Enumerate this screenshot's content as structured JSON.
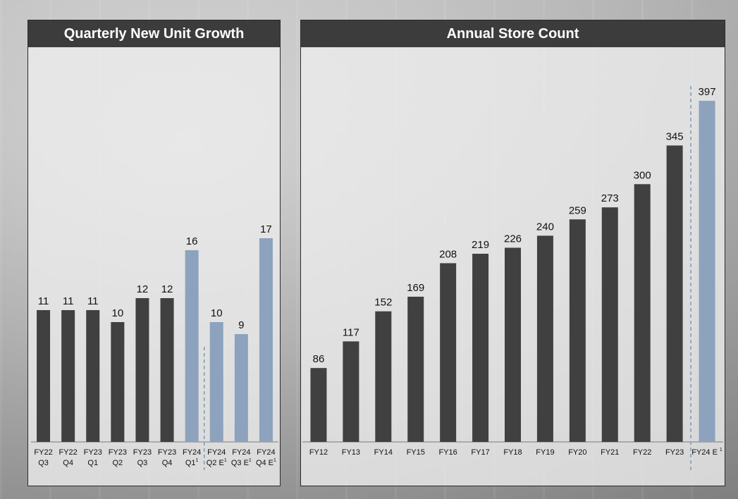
{
  "chart_data": [
    {
      "type": "bar",
      "title": "Quarterly New Unit Growth",
      "categories": [
        {
          "line1": "FY22",
          "line2": "Q3",
          "sup": ""
        },
        {
          "line1": "FY22",
          "line2": "Q4",
          "sup": ""
        },
        {
          "line1": "FY23",
          "line2": "Q1",
          "sup": ""
        },
        {
          "line1": "FY23",
          "line2": "Q2",
          "sup": ""
        },
        {
          "line1": "FY23",
          "line2": "Q3",
          "sup": ""
        },
        {
          "line1": "FY23",
          "line2": "Q4",
          "sup": ""
        },
        {
          "line1": "FY24",
          "line2": "Q1",
          "sup": "1"
        },
        {
          "line1": "FY24",
          "line2": "Q2 E",
          "sup": "1"
        },
        {
          "line1": "FY24",
          "line2": "Q3 E",
          "sup": "1"
        },
        {
          "line1": "FY24",
          "line2": "Q4 E",
          "sup": "1"
        }
      ],
      "values": [
        11,
        11,
        11,
        10,
        12,
        12,
        16,
        10,
        9,
        17
      ],
      "bar_colors": [
        "#404040",
        "#404040",
        "#404040",
        "#404040",
        "#404040",
        "#404040",
        "#8da2bc",
        "#8da2bc",
        "#8da2bc",
        "#8da2bc"
      ],
      "divider_after_index": 6,
      "ylim": [
        0,
        30
      ]
    },
    {
      "type": "bar",
      "title": "Annual Store Count",
      "categories": [
        {
          "line1": "FY12",
          "sup": ""
        },
        {
          "line1": "FY13",
          "sup": ""
        },
        {
          "line1": "FY14",
          "sup": ""
        },
        {
          "line1": "FY15",
          "sup": ""
        },
        {
          "line1": "FY16",
          "sup": ""
        },
        {
          "line1": "FY17",
          "sup": ""
        },
        {
          "line1": "FY18",
          "sup": ""
        },
        {
          "line1": "FY19",
          "sup": ""
        },
        {
          "line1": "FY20",
          "sup": ""
        },
        {
          "line1": "FY21",
          "sup": ""
        },
        {
          "line1": "FY22",
          "sup": ""
        },
        {
          "line1": "FY23",
          "sup": ""
        },
        {
          "line1": "FY24 E",
          "sup": "1"
        }
      ],
      "values": [
        86,
        117,
        152,
        169,
        208,
        219,
        226,
        240,
        259,
        273,
        300,
        345,
        397
      ],
      "bar_colors": [
        "#404040",
        "#404040",
        "#404040",
        "#404040",
        "#404040",
        "#404040",
        "#404040",
        "#404040",
        "#404040",
        "#404040",
        "#404040",
        "#404040",
        "#8da2bc"
      ],
      "divider_after_index": 11,
      "ylim": [
        0,
        420
      ]
    }
  ],
  "colors": {
    "actual": "#404040",
    "estimate": "#8da2bc",
    "divider": "#7f97b6",
    "header": "#3c3c3c"
  }
}
